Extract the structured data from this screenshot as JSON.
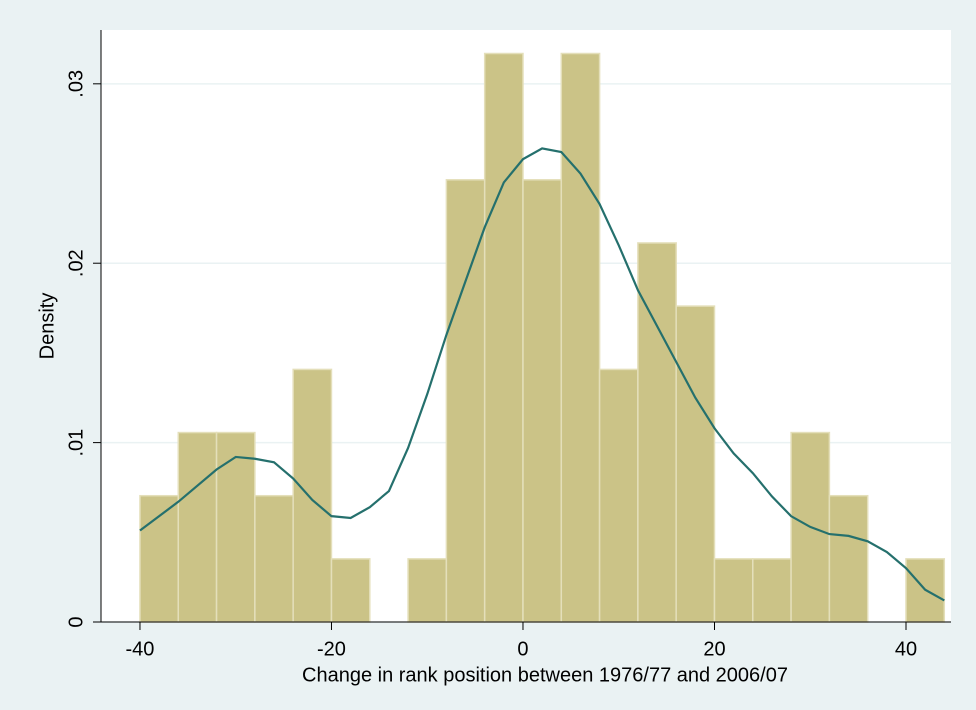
{
  "chart_data": {
    "type": "histogram",
    "xlabel": "Change in rank position between 1976/77 and 2006/07",
    "ylabel": "Density",
    "bins": [
      -40,
      -36,
      -32,
      -28,
      -24,
      -20,
      -16,
      -12,
      -8,
      -4,
      0,
      4,
      8,
      12,
      16,
      20,
      24,
      28,
      32,
      36,
      40,
      44
    ],
    "values": [
      0.00704,
      0.01056,
      0.01056,
      0.00704,
      0.01408,
      0.00352,
      0,
      0.00352,
      0.02465,
      0.03169,
      0.02465,
      0.03169,
      0.01408,
      0.02113,
      0.01761,
      0.00352,
      0.00352,
      0.01056,
      0.00704,
      0,
      0.00352
    ],
    "color": "#cbc387",
    "density": {
      "color": "#25706d",
      "x": [
        -40,
        -36,
        -32,
        -30,
        -28,
        -26,
        -24,
        -22,
        -20,
        -18,
        -16,
        -14,
        -12,
        -10,
        -8,
        -6,
        -4,
        -2,
        0,
        2,
        4,
        6,
        8,
        10,
        12,
        14,
        16,
        18,
        20,
        22,
        24,
        26,
        28,
        30,
        32,
        34,
        36,
        38,
        40,
        42,
        44
      ],
      "values": [
        0.0051,
        0.0067,
        0.0085,
        0.0092,
        0.0091,
        0.0089,
        0.008,
        0.0068,
        0.0059,
        0.0058,
        0.0064,
        0.0073,
        0.0097,
        0.0127,
        0.016,
        0.019,
        0.022,
        0.0245,
        0.0258,
        0.0264,
        0.0262,
        0.025,
        0.0233,
        0.021,
        0.0185,
        0.0165,
        0.0145,
        0.0125,
        0.0108,
        0.0094,
        0.0083,
        0.007,
        0.0059,
        0.0053,
        0.0049,
        0.0048,
        0.0045,
        0.0039,
        0.003,
        0.0018,
        0.0012
      ]
    },
    "xlim": [
      -44.07,
      44.7
    ],
    "ylim": [
      0,
      0.033
    ],
    "xticks": [
      -40,
      -20,
      0,
      20,
      40
    ],
    "yticks": [
      {
        "value": 0,
        "label": "0"
      },
      {
        "value": 0.01,
        "label": ".01"
      },
      {
        "value": 0.02,
        "label": ".02"
      },
      {
        "value": 0.03,
        "label": ".03"
      }
    ],
    "grid": true
  }
}
